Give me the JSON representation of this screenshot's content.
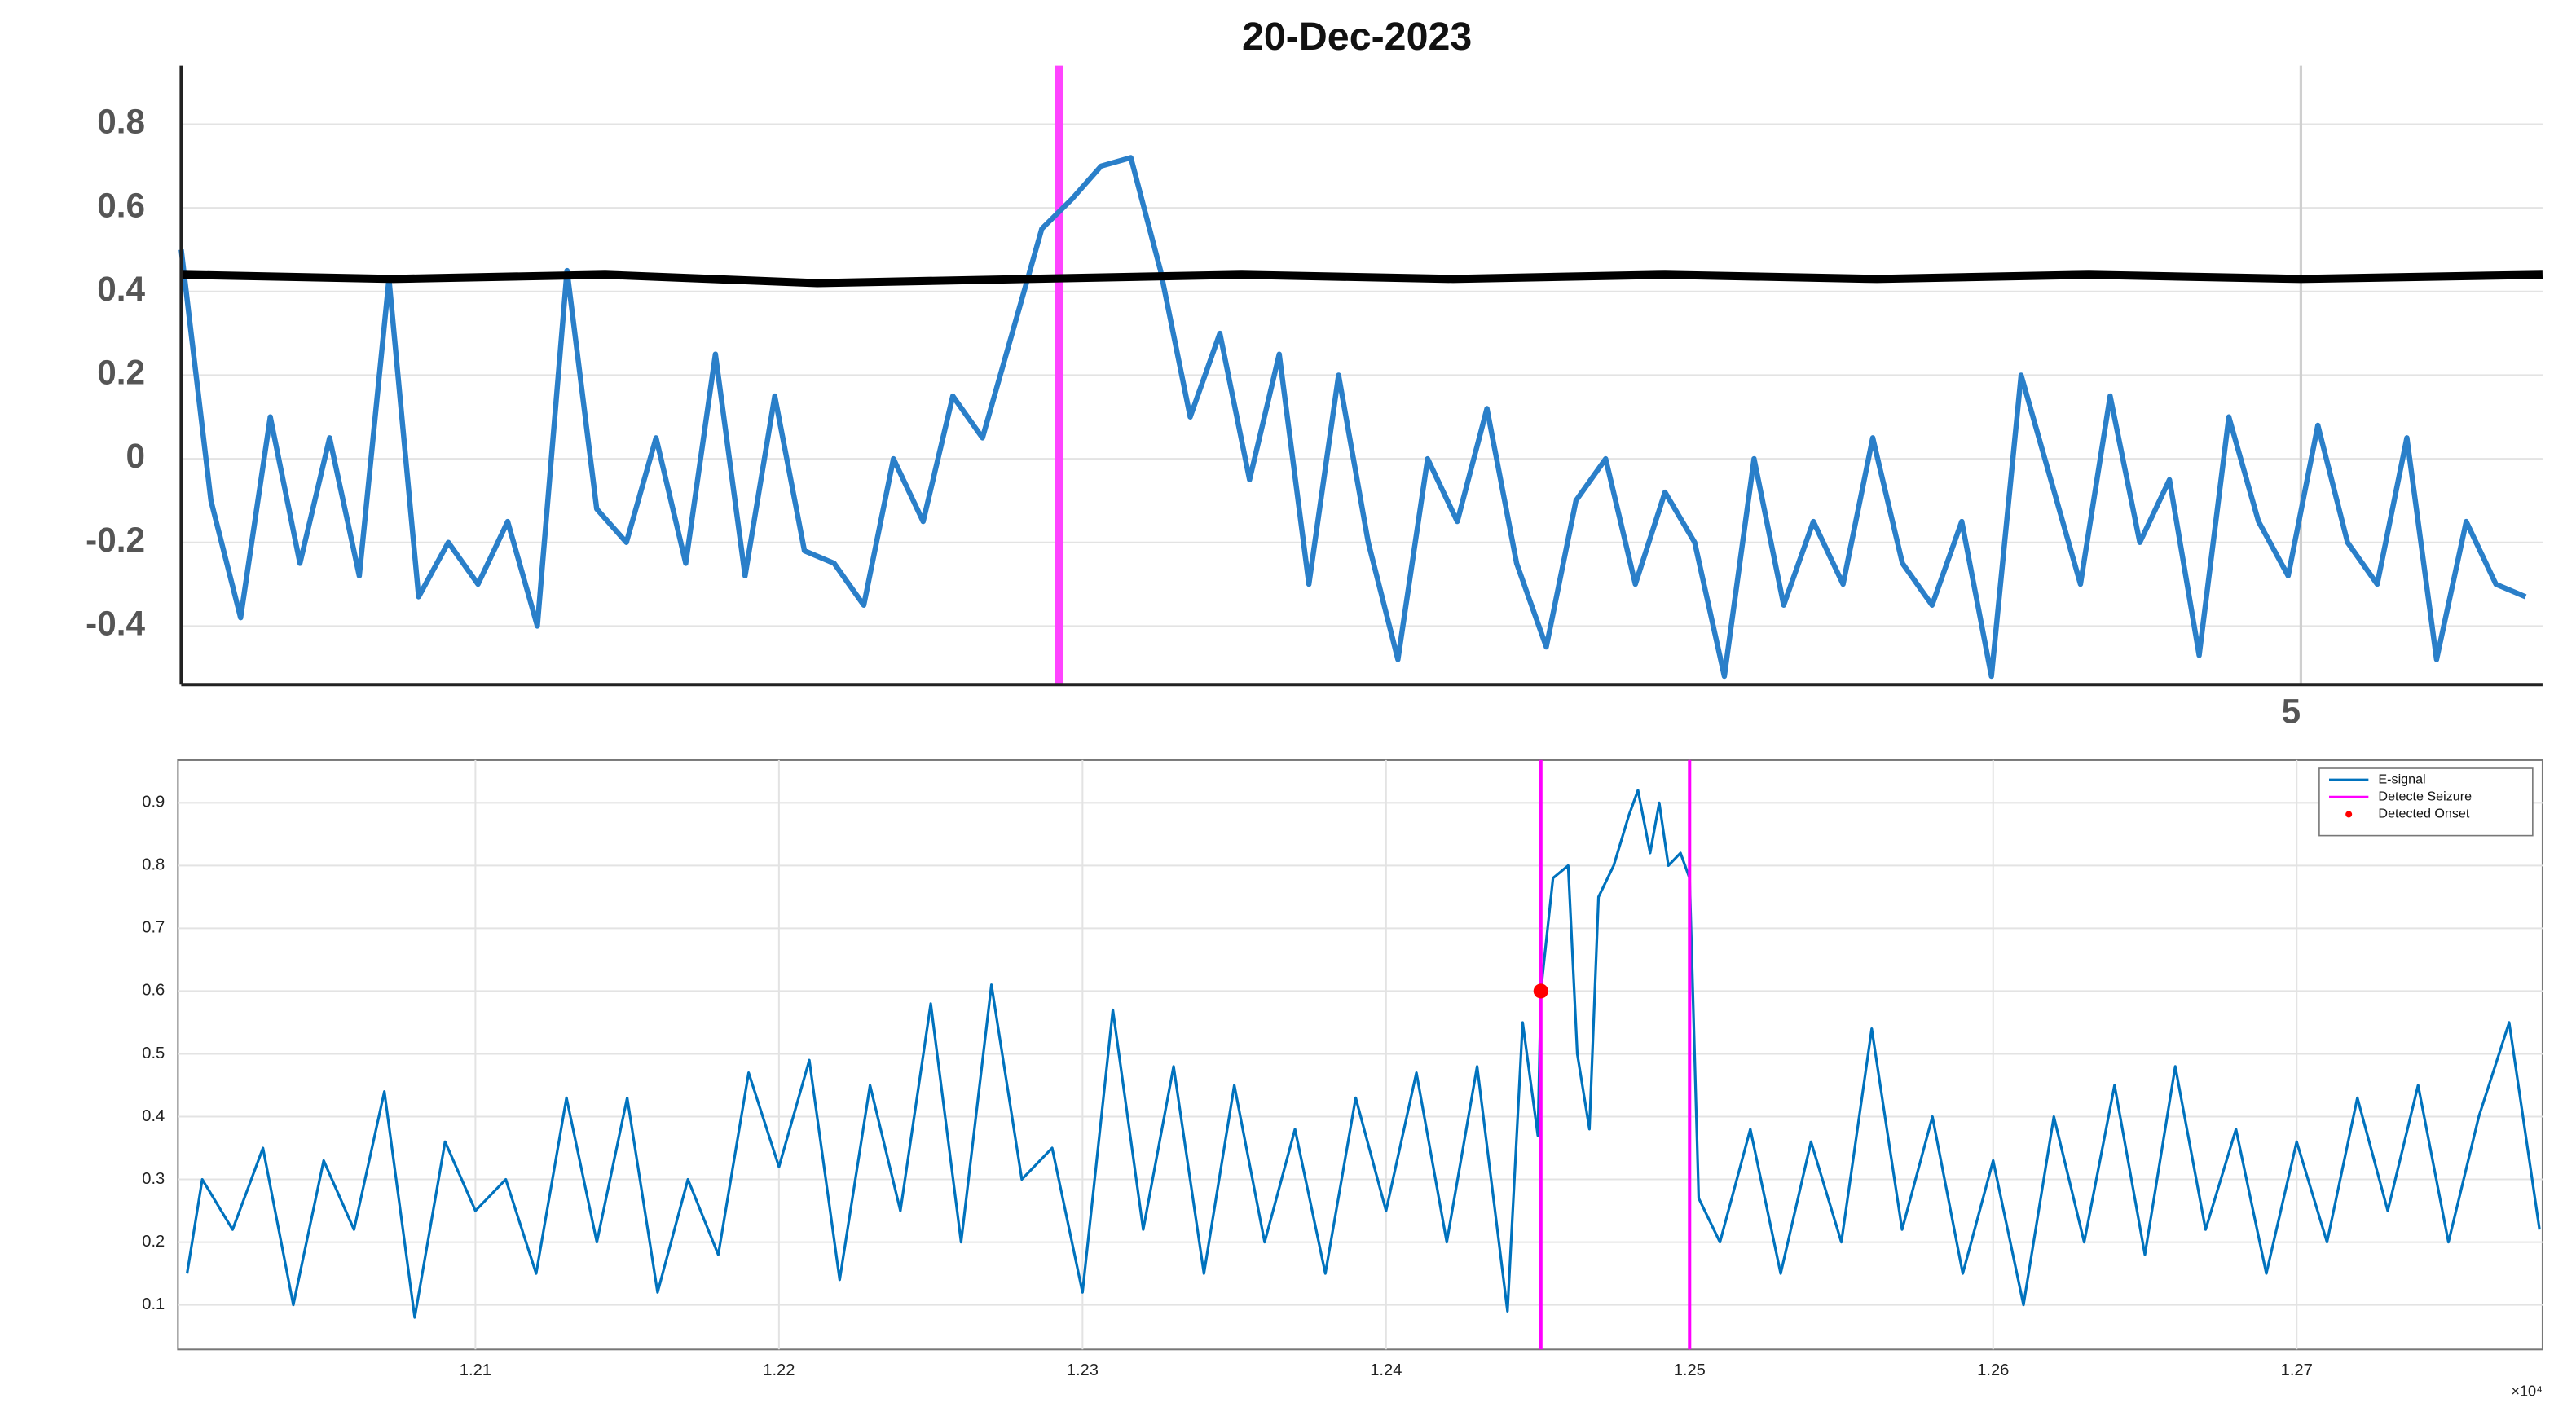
{
  "chart_data": [
    {
      "type": "line",
      "title": "20-Dec-2023",
      "xlim": [
        0,
        5.57
      ],
      "xticks": [
        5
      ],
      "ylim": [
        -0.54,
        0.94
      ],
      "yticks": [
        0.8,
        0.6,
        0.4,
        0.2,
        0,
        -0.2,
        -0.4
      ],
      "grid": true,
      "vlines": [
        {
          "x": 2.07,
          "color": "#ff44ff"
        }
      ],
      "series": [
        {
          "color": "#2a7fc9",
          "x": [
            0,
            0.07,
            0.14,
            0.21,
            0.28,
            0.35,
            0.42,
            0.49,
            0.56,
            0.63,
            0.7,
            0.77,
            0.84,
            0.91,
            0.98,
            1.05,
            1.12,
            1.19,
            1.26,
            1.33,
            1.4,
            1.47,
            1.54,
            1.61,
            1.68,
            1.75,
            1.82,
            1.89,
            1.96,
            2.03,
            2.1,
            2.17,
            2.24,
            2.31,
            2.38,
            2.45,
            2.52,
            2.59,
            2.66,
            2.73,
            2.8,
            2.87,
            2.94,
            3.01,
            3.08,
            3.15,
            3.22,
            3.29,
            3.36,
            3.43,
            3.5,
            3.57,
            3.64,
            3.71,
            3.78,
            3.85,
            3.92,
            3.99,
            4.06,
            4.13,
            4.2,
            4.27,
            4.34,
            4.41,
            4.48,
            4.55,
            4.62,
            4.69,
            4.76,
            4.83,
            4.9,
            4.97,
            5.04,
            5.11,
            5.18,
            5.25,
            5.32,
            5.39,
            5.46,
            5.53
          ],
          "values": [
            0.5,
            -0.1,
            -0.38,
            0.1,
            -0.25,
            0.05,
            -0.28,
            0.43,
            -0.33,
            -0.2,
            -0.3,
            -0.15,
            -0.4,
            0.45,
            -0.12,
            -0.2,
            0.05,
            -0.25,
            0.25,
            -0.28,
            0.15,
            -0.22,
            -0.25,
            -0.35,
            0,
            -0.15,
            0.15,
            0.05,
            0.3,
            0.55,
            0.62,
            0.7,
            0.72,
            0.45,
            0.1,
            0.3,
            -0.05,
            0.25,
            -0.3,
            0.2,
            -0.2,
            -0.48,
            0,
            -0.15,
            0.12,
            -0.25,
            -0.45,
            -0.1,
            0,
            -0.3,
            -0.08,
            -0.2,
            -0.52,
            0,
            -0.35,
            -0.15,
            -0.3,
            0.05,
            -0.25,
            -0.35,
            -0.15,
            -0.52,
            0.2,
            -0.05,
            -0.3,
            0.15,
            -0.2,
            -0.05,
            -0.47,
            0.1,
            -0.15,
            -0.28,
            0.08,
            -0.2,
            -0.3,
            0.05,
            -0.48,
            -0.15,
            -0.3,
            -0.33
          ]
        },
        {
          "color": "#000000",
          "x": [
            0,
            0.5,
            1,
            1.5,
            2,
            2.5,
            3,
            3.5,
            4,
            4.5,
            5,
            5.57
          ],
          "values": [
            0.44,
            0.43,
            0.44,
            0.42,
            0.43,
            0.44,
            0.43,
            0.44,
            0.43,
            0.44,
            0.43,
            0.44
          ]
        }
      ]
    },
    {
      "type": "line",
      "xlim": [
        1.2002,
        1.2781
      ],
      "xticks": [
        1.21,
        1.22,
        1.23,
        1.24,
        1.25,
        1.26,
        1.27
      ],
      "x_exponent_label": "×10⁴",
      "ylim": [
        0.029,
        0.968
      ],
      "yticks": [
        0.1,
        0.2,
        0.3,
        0.4,
        0.5,
        0.6,
        0.7,
        0.8,
        0.9
      ],
      "grid": true,
      "legend": "upper right",
      "series": [
        {
          "name": "E-signal",
          "color": "#0072bd",
          "x": [
            1.2005,
            1.201,
            1.202,
            1.203,
            1.204,
            1.205,
            1.206,
            1.207,
            1.208,
            1.209,
            1.21,
            1.211,
            1.212,
            1.213,
            1.214,
            1.215,
            1.216,
            1.217,
            1.218,
            1.219,
            1.22,
            1.221,
            1.222,
            1.223,
            1.224,
            1.225,
            1.226,
            1.227,
            1.228,
            1.229,
            1.23,
            1.231,
            1.232,
            1.233,
            1.234,
            1.235,
            1.236,
            1.237,
            1.238,
            1.239,
            1.24,
            1.241,
            1.242,
            1.243,
            1.244,
            1.2445,
            1.245,
            1.2451,
            1.2455,
            1.246,
            1.2463,
            1.2467,
            1.247,
            1.2475,
            1.248,
            1.2483,
            1.2487,
            1.249,
            1.2493,
            1.2497,
            1.25,
            1.2503,
            1.251,
            1.252,
            1.253,
            1.254,
            1.255,
            1.256,
            1.257,
            1.258,
            1.259,
            1.26,
            1.261,
            1.262,
            1.263,
            1.264,
            1.265,
            1.266,
            1.267,
            1.268,
            1.269,
            1.27,
            1.271,
            1.272,
            1.273,
            1.274,
            1.275,
            1.276,
            1.277,
            1.278
          ],
          "values": [
            0.15,
            0.3,
            0.22,
            0.35,
            0.1,
            0.33,
            0.22,
            0.44,
            0.08,
            0.36,
            0.25,
            0.3,
            0.15,
            0.43,
            0.2,
            0.43,
            0.12,
            0.3,
            0.18,
            0.47,
            0.32,
            0.49,
            0.14,
            0.45,
            0.25,
            0.58,
            0.2,
            0.61,
            0.3,
            0.35,
            0.12,
            0.57,
            0.22,
            0.48,
            0.15,
            0.45,
            0.2,
            0.38,
            0.15,
            0.43,
            0.25,
            0.47,
            0.2,
            0.48,
            0.09,
            0.55,
            0.37,
            0.6,
            0.78,
            0.8,
            0.5,
            0.38,
            0.75,
            0.8,
            0.88,
            0.92,
            0.82,
            0.9,
            0.8,
            0.82,
            0.78,
            0.27,
            0.2,
            0.38,
            0.15,
            0.36,
            0.2,
            0.54,
            0.22,
            0.4,
            0.15,
            0.33,
            0.1,
            0.4,
            0.2,
            0.45,
            0.18,
            0.48,
            0.22,
            0.38,
            0.15,
            0.36,
            0.2,
            0.43,
            0.25,
            0.45,
            0.2,
            0.4,
            0.55,
            0.22
          ]
        },
        {
          "name": "Detecte Seizure",
          "color": "#ff00ff",
          "vlines": [
            1.2451,
            1.25
          ]
        },
        {
          "name": "Detected Onset",
          "color": "#ff0000",
          "x": [
            1.2451
          ],
          "values": [
            0.6
          ]
        }
      ]
    }
  ]
}
